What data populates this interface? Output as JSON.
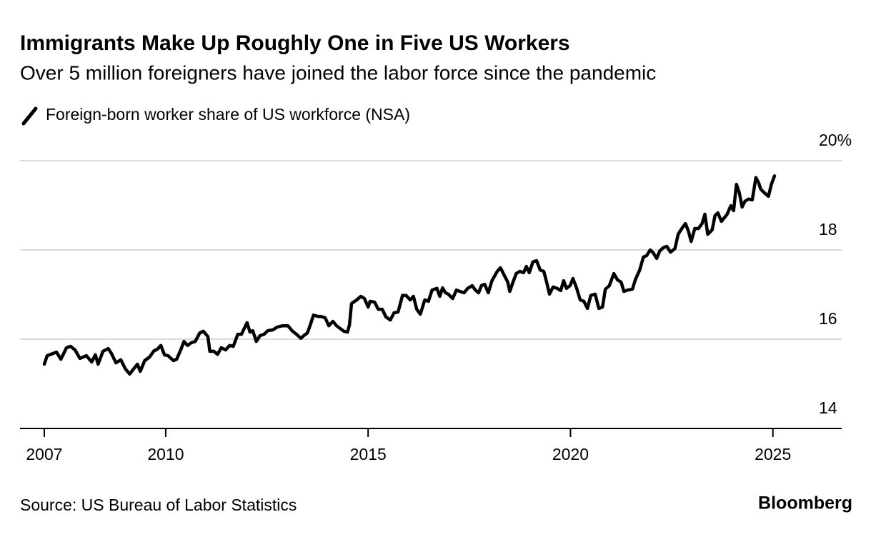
{
  "chart_data": {
    "type": "line",
    "title": "Immigrants Make Up Roughly One in Five US Workers",
    "subtitle": "Over 5 million foreigners have joined the labor force since the pandemic",
    "source": "Source: US Bureau of Labor Statistics",
    "credit": "Bloomberg",
    "xlim": [
      2006.4,
      2026.7
    ],
    "xticks": [
      2007,
      2010,
      2015,
      2020,
      2025
    ],
    "ylim": [
      14,
      20
    ],
    "yticks": [
      14,
      16,
      18,
      {
        "value": 20,
        "label": "20%"
      }
    ],
    "grid": true,
    "x": [
      2007.0,
      2007.07,
      2007.3,
      2007.41,
      2007.55,
      2007.65,
      2007.76,
      2007.88,
      2008.04,
      2008.17,
      2008.26,
      2008.33,
      2008.45,
      2008.58,
      2008.66,
      2008.77,
      2008.89,
      2009.0,
      2009.11,
      2009.21,
      2009.3,
      2009.37,
      2009.48,
      2009.6,
      2009.71,
      2009.8,
      2009.88,
      2009.97,
      2010.06,
      2010.19,
      2010.27,
      2010.38,
      2010.45,
      2010.54,
      2010.63,
      2010.73,
      2010.84,
      2010.93,
      2011.04,
      2011.09,
      2011.19,
      2011.28,
      2011.37,
      2011.48,
      2011.58,
      2011.67,
      2011.78,
      2011.87,
      2011.94,
      2012.01,
      2012.08,
      2012.15,
      2012.24,
      2012.33,
      2012.43,
      2012.52,
      2012.65,
      2012.75,
      2012.89,
      2013.02,
      2013.12,
      2013.23,
      2013.34,
      2013.41,
      2013.5,
      2013.58,
      2013.65,
      2013.76,
      2013.83,
      2013.94,
      2014.03,
      2014.13,
      2014.22,
      2014.31,
      2014.4,
      2014.49,
      2014.54,
      2014.59,
      2014.72,
      2014.82,
      2014.91,
      2015.0,
      2015.05,
      2015.16,
      2015.25,
      2015.35,
      2015.44,
      2015.55,
      2015.64,
      2015.74,
      2015.85,
      2015.94,
      2016.04,
      2016.12,
      2016.2,
      2016.29,
      2016.4,
      2016.49,
      2016.58,
      2016.7,
      2016.77,
      2016.84,
      2016.91,
      2016.98,
      2017.09,
      2017.18,
      2017.27,
      2017.37,
      2017.46,
      2017.57,
      2017.65,
      2017.73,
      2017.8,
      2017.88,
      2017.97,
      2018.06,
      2018.19,
      2018.27,
      2018.36,
      2018.45,
      2018.5,
      2018.58,
      2018.66,
      2018.75,
      2018.84,
      2018.91,
      2018.98,
      2019.07,
      2019.16,
      2019.25,
      2019.34,
      2019.41,
      2019.48,
      2019.57,
      2019.67,
      2019.76,
      2019.83,
      2019.9,
      2019.99,
      2020.06,
      2020.15,
      2020.24,
      2020.33,
      2020.42,
      2020.5,
      2020.61,
      2020.7,
      2020.79,
      2020.86,
      2020.96,
      2021.07,
      2021.16,
      2021.25,
      2021.32,
      2021.41,
      2021.53,
      2021.6,
      2021.71,
      2021.8,
      2021.88,
      2021.97,
      2022.04,
      2022.13,
      2022.2,
      2022.29,
      2022.38,
      2022.47,
      2022.58,
      2022.66,
      2022.75,
      2022.84,
      2022.91,
      2022.98,
      2023.07,
      2023.16,
      2023.25,
      2023.32,
      2023.39,
      2023.5,
      2023.57,
      2023.64,
      2023.73,
      2023.8,
      2023.87,
      2023.96,
      2024.03,
      2024.1,
      2024.17,
      2024.24,
      2024.31,
      2024.4,
      2024.49,
      2024.58,
      2024.65,
      2024.7,
      2024.79,
      2024.89,
      2024.96,
      2025.04
    ],
    "series": [
      {
        "name": "Foreign-born worker share of US workforce (NSA)",
        "color": "#000000",
        "values": [
          15.44,
          15.63,
          15.71,
          15.55,
          15.81,
          15.84,
          15.76,
          15.57,
          15.63,
          15.49,
          15.65,
          15.44,
          15.73,
          15.79,
          15.68,
          15.47,
          15.54,
          15.34,
          15.22,
          15.34,
          15.44,
          15.28,
          15.52,
          15.6,
          15.74,
          15.78,
          15.86,
          15.65,
          15.63,
          15.52,
          15.55,
          15.78,
          15.95,
          15.86,
          15.92,
          15.95,
          16.14,
          16.18,
          16.06,
          15.73,
          15.73,
          15.66,
          15.81,
          15.76,
          15.86,
          15.84,
          16.11,
          16.11,
          16.24,
          16.37,
          16.16,
          16.19,
          15.95,
          16.08,
          16.11,
          16.19,
          16.21,
          16.27,
          16.3,
          16.3,
          16.19,
          16.11,
          16.02,
          16.08,
          16.14,
          16.34,
          16.54,
          16.51,
          16.51,
          16.48,
          16.3,
          16.4,
          16.3,
          16.24,
          16.18,
          16.16,
          16.32,
          16.8,
          16.88,
          16.96,
          16.91,
          16.72,
          16.85,
          16.83,
          16.67,
          16.67,
          16.5,
          16.43,
          16.59,
          16.61,
          16.98,
          16.98,
          16.88,
          16.96,
          16.67,
          16.56,
          16.88,
          16.85,
          17.1,
          17.14,
          16.96,
          17.15,
          17.04,
          17.01,
          16.91,
          17.1,
          17.07,
          17.04,
          17.14,
          17.2,
          17.1,
          17.04,
          17.2,
          17.23,
          17.04,
          17.31,
          17.52,
          17.6,
          17.44,
          17.28,
          17.07,
          17.28,
          17.47,
          17.52,
          17.49,
          17.63,
          17.49,
          17.73,
          17.76,
          17.55,
          17.52,
          17.28,
          17.01,
          17.17,
          17.14,
          17.09,
          17.31,
          17.14,
          17.2,
          17.36,
          17.15,
          16.88,
          16.85,
          16.69,
          16.98,
          17.01,
          16.69,
          16.72,
          17.12,
          17.2,
          17.47,
          17.33,
          17.28,
          17.07,
          17.1,
          17.12,
          17.33,
          17.55,
          17.84,
          17.87,
          18.0,
          17.94,
          17.81,
          17.97,
          18.05,
          18.08,
          17.95,
          18.03,
          18.35,
          18.48,
          18.59,
          18.43,
          18.19,
          18.48,
          18.48,
          18.59,
          18.8,
          18.35,
          18.45,
          18.77,
          18.83,
          18.64,
          18.72,
          18.8,
          18.99,
          18.88,
          19.47,
          19.28,
          18.96,
          19.09,
          19.14,
          19.12,
          19.62,
          19.5,
          19.36,
          19.28,
          19.2,
          19.46,
          19.66
        ]
      }
    ]
  }
}
